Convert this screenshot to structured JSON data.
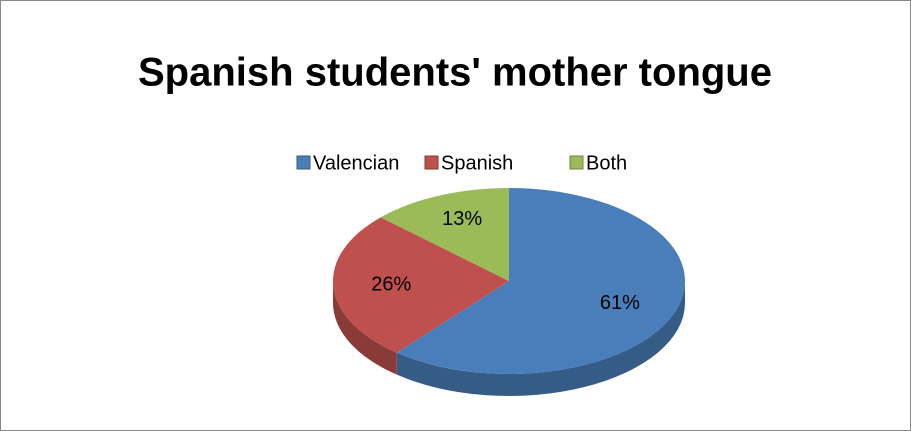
{
  "chart_data": {
    "type": "pie",
    "title": "Spanish students' mother tongue",
    "categories": [
      "Valencian",
      "Spanish",
      "Both"
    ],
    "values": [
      61,
      26,
      13
    ],
    "value_labels": [
      "61%",
      "26%",
      "13%"
    ],
    "colors": [
      "#4a7ebb",
      "#c0504d",
      "#9bbb59"
    ],
    "legend": "top"
  }
}
